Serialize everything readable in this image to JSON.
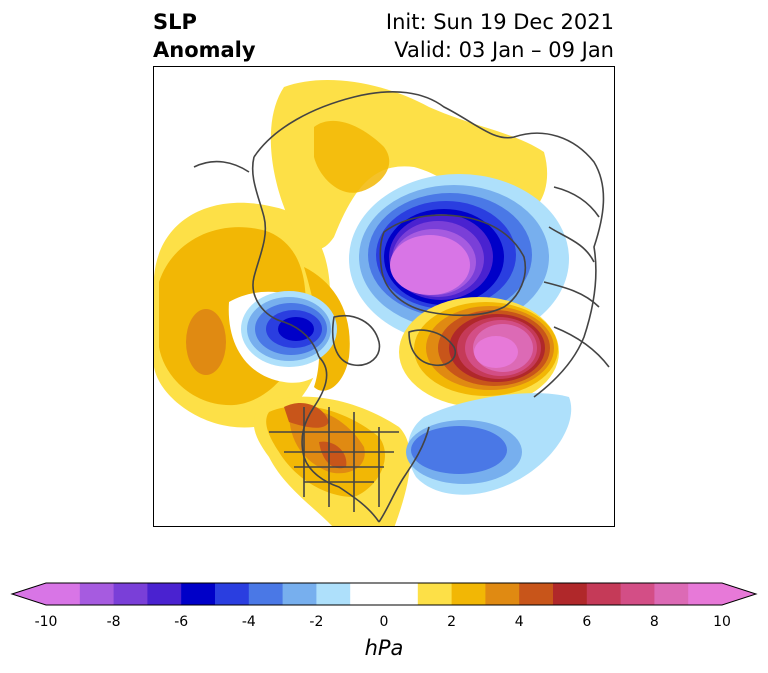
{
  "title": {
    "variable": "SLP",
    "subtitle": "Anomaly",
    "init": "Init: Sun 19 Dec 2021",
    "valid": "Valid: 03 Jan – 09 Jan"
  },
  "colorbar": {
    "units": "hPa",
    "ticks": [
      "-10",
      "-8",
      "-6",
      "-4",
      "-2",
      "0",
      "2",
      "4",
      "6",
      "8",
      "10"
    ],
    "levels": [
      {
        "range": "-10 to -9",
        "color": "#d875e6"
      },
      {
        "range": "-9 to -8",
        "color": "#a65be0"
      },
      {
        "range": "-8 to -7",
        "color": "#7a3fd8"
      },
      {
        "range": "-7 to -6",
        "color": "#4a22d0"
      },
      {
        "range": "-6 to -5",
        "color": "#0000c8"
      },
      {
        "range": "-5 to -4",
        "color": "#2a3ee0"
      },
      {
        "range": "-4 to -3",
        "color": "#4a78e6"
      },
      {
        "range": "-3 to -2",
        "color": "#77afee"
      },
      {
        "range": "-2 to -1",
        "color": "#aee0fb"
      },
      {
        "range": "-1 to 0",
        "color": "#ffffff"
      },
      {
        "range": "0 to 1",
        "color": "#ffffff"
      },
      {
        "range": "1 to 2",
        "color": "#fde047"
      },
      {
        "range": "2 to 3",
        "color": "#f2b705"
      },
      {
        "range": "3 to 4",
        "color": "#e08a12"
      },
      {
        "range": "4 to 5",
        "color": "#c8551a"
      },
      {
        "range": "5 to 6",
        "color": "#b0282a"
      },
      {
        "range": "6 to 7",
        "color": "#c53a58"
      },
      {
        "range": "7 to 8",
        "color": "#d34e86"
      },
      {
        "range": "8 to 9",
        "color": "#dc6ab5"
      },
      {
        "range": "9 to 10",
        "color": "#e779d8"
      }
    ],
    "extend_low_color": "#d875e6",
    "extend_high_color": "#e779d8"
  },
  "map": {
    "projection": "north-polar-stereographic",
    "land_outline_color": "#444444"
  }
}
